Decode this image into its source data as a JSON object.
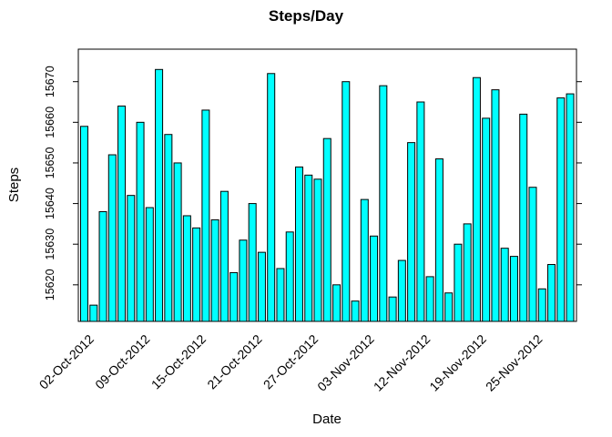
{
  "chart_data": {
    "type": "bar",
    "title": "Steps/Day",
    "xlabel": "Date",
    "ylabel": "Steps",
    "ylim": [
      15611,
      15678
    ],
    "y_ticks": [
      15620,
      15630,
      15640,
      15650,
      15660,
      15670
    ],
    "bar_color": "#00ffff",
    "grid": false,
    "values": [
      15659,
      15615,
      15638,
      15652,
      15664,
      15642,
      15660,
      15639,
      15673,
      15657,
      15650,
      15637,
      15634,
      15663,
      15636,
      15643,
      15623,
      15631,
      15640,
      15628,
      15672,
      15624,
      15633,
      15649,
      15647,
      15646,
      15656,
      15620,
      15670,
      15616,
      15641,
      15632,
      15669,
      15617,
      15626,
      15655,
      15665,
      15622,
      15651,
      15618,
      15630,
      15635,
      15671,
      15661,
      15668,
      15629,
      15627,
      15662,
      15644,
      15619,
      15625,
      15666,
      15667
    ],
    "x_tick_labels": [
      {
        "index": 0,
        "label": "02-Oct-2012"
      },
      {
        "index": 6,
        "label": "09-Oct-2012"
      },
      {
        "index": 12,
        "label": "15-Oct-2012"
      },
      {
        "index": 18,
        "label": "21-Oct-2012"
      },
      {
        "index": 24,
        "label": "27-Oct-2012"
      },
      {
        "index": 30,
        "label": "03-Nov-2012"
      },
      {
        "index": 36,
        "label": "12-Nov-2012"
      },
      {
        "index": 42,
        "label": "19-Nov-2012"
      },
      {
        "index": 48,
        "label": "25-Nov-2012"
      }
    ]
  }
}
